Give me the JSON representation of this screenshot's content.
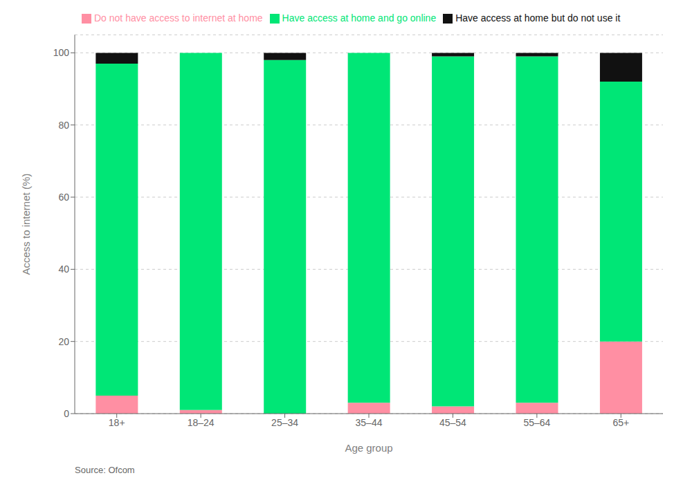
{
  "chart_data": {
    "type": "bar",
    "stacked": true,
    "xlabel": "Age group",
    "ylabel": "Access to internet (%)",
    "categories": [
      "18+",
      "18–24",
      "25–34",
      "35–44",
      "45–54",
      "55–64",
      "65+"
    ],
    "series": [
      {
        "name": "Do not have access to internet at home",
        "color": "#FF8FA3",
        "values": [
          5,
          1,
          0,
          3,
          2,
          3,
          20
        ]
      },
      {
        "name": "Have access at home and go online",
        "color": "#00E676",
        "values": [
          92,
          99,
          98,
          97,
          97,
          96,
          72
        ]
      },
      {
        "name": "Have access at home but do not use it",
        "color": "#111111",
        "values": [
          3,
          0,
          2,
          0,
          1,
          1,
          8
        ]
      }
    ],
    "ylim": [
      0,
      105
    ],
    "yticks": [
      0,
      20,
      40,
      60,
      80,
      100
    ],
    "grid": true,
    "legend": "top",
    "annotations": [
      "Source: Ofcom"
    ]
  }
}
